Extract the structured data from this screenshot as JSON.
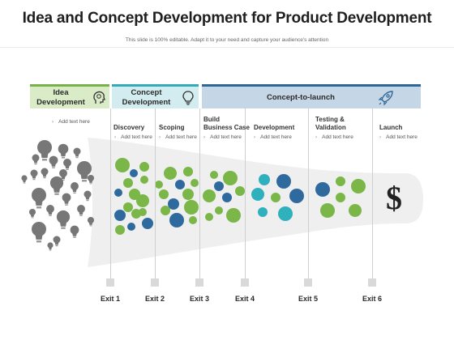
{
  "title": "Idea and Concept Development for Product Development",
  "subtitle": "This slide is 100% editable. Adapt it to your need and capture your audience's attention",
  "headers": [
    {
      "label": "Idea\nDevelopment",
      "icon": "head-idea-icon",
      "color": "#78b04a"
    },
    {
      "label": "Concept\nDevelopment",
      "icon": "lightbulb-icon",
      "color": "#33aab6"
    },
    {
      "label": "Concept-to-launch",
      "icon": "rocket-icon",
      "color": "#2e6795"
    }
  ],
  "idea_note": "Add text here",
  "stages": [
    {
      "label": "Discovery",
      "note": "Add text here"
    },
    {
      "label": "Scoping",
      "note": "Add text here"
    },
    {
      "label": "Build\nBusiness Case",
      "note": "Add text here"
    },
    {
      "label": "Development",
      "note": "Add text here"
    },
    {
      "label": "Testing &\nValidation",
      "note": "Add text here"
    },
    {
      "label": "Launch",
      "note": "Add text here"
    }
  ],
  "exits": [
    "Exit 1",
    "Exit 2",
    "Exit 3",
    "Exit 4",
    "Exit 5",
    "Exit 6"
  ],
  "dollar_symbol": "$",
  "colors": {
    "green": "#7ab648",
    "blue": "#2f6a9e",
    "teal": "#2fb0bd",
    "gray": "#777777",
    "funnel": "#efefef"
  }
}
